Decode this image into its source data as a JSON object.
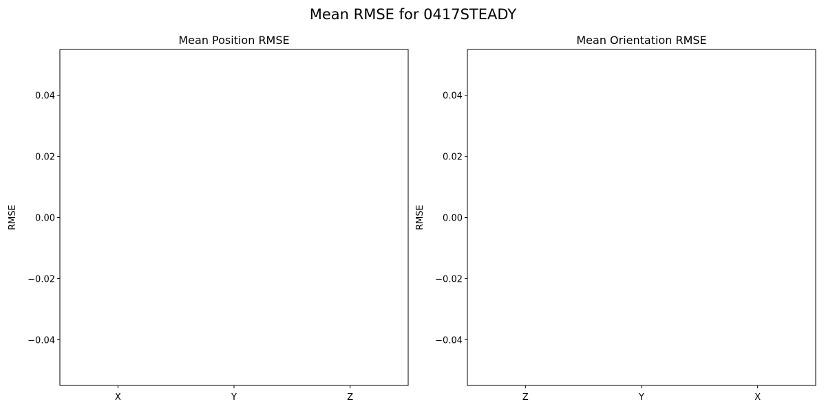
{
  "figure": {
    "suptitle": "Mean RMSE for 0417STEADY"
  },
  "chart_data": [
    {
      "type": "bar",
      "title": "Mean Position RMSE",
      "xlabel": "",
      "ylabel": "RMSE",
      "categories": [
        "X",
        "Y",
        "Z"
      ],
      "values": [
        0,
        0,
        0
      ],
      "ylim": [
        -0.055,
        0.055
      ],
      "yticks": [
        -0.04,
        -0.02,
        0.0,
        0.02,
        0.04
      ],
      "ytick_labels": [
        "−0.04",
        "−0.02",
        "0.00",
        "0.02",
        "0.04"
      ],
      "grid": false,
      "legend": "none"
    },
    {
      "type": "bar",
      "title": "Mean Orientation RMSE",
      "xlabel": "",
      "ylabel": "RMSE",
      "categories": [
        "Z",
        "Y",
        "X"
      ],
      "values": [
        0,
        0,
        0
      ],
      "ylim": [
        -0.055,
        0.055
      ],
      "yticks": [
        -0.04,
        -0.02,
        0.0,
        0.02,
        0.04
      ],
      "ytick_labels": [
        "−0.04",
        "−0.02",
        "0.00",
        "0.02",
        "0.04"
      ],
      "grid": false,
      "legend": "none"
    }
  ]
}
